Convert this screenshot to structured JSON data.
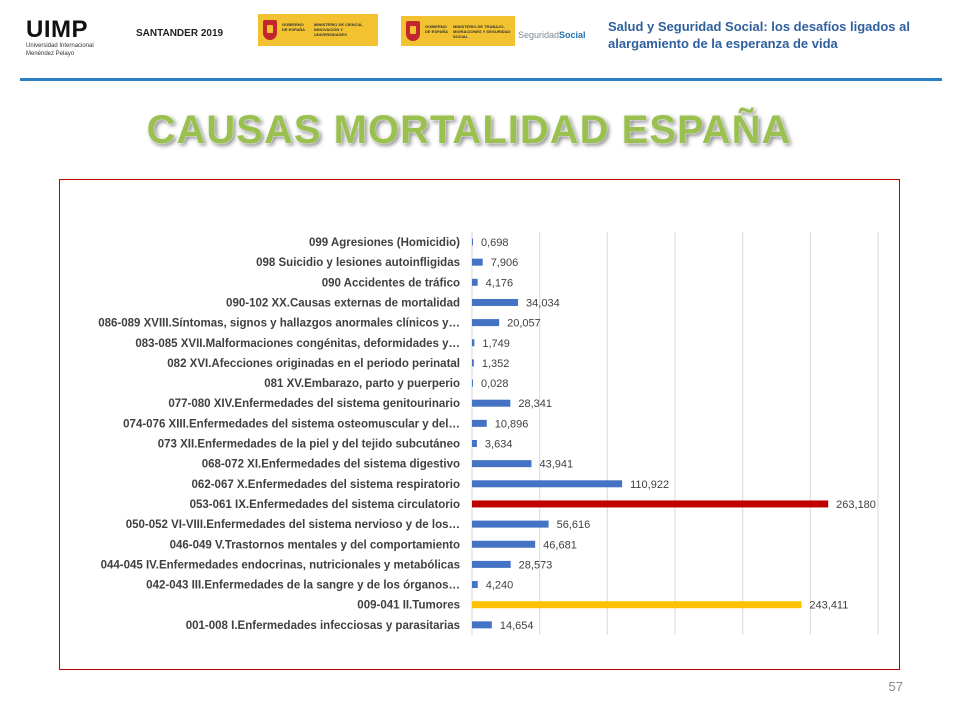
{
  "header": {
    "uimp_name": "UIMP",
    "uimp_subtitle_1": "Universidad Internacional",
    "uimp_subtitle_2": "Menéndez Pelayo",
    "event": "SANTANDER 2019",
    "gov1_text_1": "GOBIERNO DE ESPAÑA",
    "gov1_text_2": "MINISTERIO DE CIENCIA, INNOVACIÓN Y UNIVERSIDADES",
    "gov2_text_1": "GOBIERNO DE ESPAÑA",
    "gov2_text_2": "MINISTERIO DE TRABAJO, MIGRACIONES Y SEGURIDAD SOCIAL",
    "ss_prefix": "Seguridad",
    "ss_suffix": "Social",
    "conference_title_1": "Salud y Seguridad Social: los desafíos ligados al",
    "conference_title_2": "alargamiento de la esperanza de vida"
  },
  "title": "CAUSAS MORTALIDAD ESPAÑA",
  "page_number": "57",
  "chart_data": {
    "type": "bar",
    "orientation": "horizontal",
    "xlim": [
      0,
      300000
    ],
    "grid": true,
    "colors": {
      "default": "#4472c4",
      "highlight_red": "#c00000",
      "highlight_yellow": "#ffc000"
    },
    "categories": [
      "099  Agresiones (Homicidio)",
      "098 Suicidio y lesiones autoinfligidas",
      "090 Accidentes de tráfico",
      "090-102 XX.Causas externas de mortalidad",
      "086-089 XVIII.Síntomas, signos y hallazgos anormales clínicos y…",
      "083-085 XVII.Malformaciones congénitas, deformidades y…",
      "082 XVI.Afecciones originadas en el periodo perinatal",
      "081 XV.Embarazo, parto y puerperio",
      "077-080 XIV.Enfermedades del sistema genitourinario",
      "074-076 XIII.Enfermedades del sistema osteomuscular y del…",
      "073 XII.Enfermedades de la piel y del tejido subcutáneo",
      "068-072 XI.Enfermedades del sistema digestivo",
      "062-067 X.Enfermedades del sistema respiratorio",
      "053-061 IX.Enfermedades del sistema circulatorio",
      "050-052 VI-VIII.Enfermedades del sistema nervioso y de los…",
      "046-049 V.Trastornos mentales y del comportamiento",
      "044-045 IV.Enfermedades endocrinas, nutricionales y metabólicas",
      "042-043 III.Enfermedades de la sangre y de los órganos…",
      "009-041 II.Tumores",
      "001-008 I.Enfermedades infecciosas y parasitarias"
    ],
    "values": [
      698,
      7906,
      4176,
      34034,
      20057,
      1749,
      1352,
      28,
      28341,
      10896,
      3634,
      43941,
      110922,
      263180,
      56616,
      46681,
      28573,
      4240,
      243411,
      14654
    ],
    "data_labels": [
      "0,698",
      "7,906",
      "4,176",
      "34,034",
      "20,057",
      "1,749",
      "1,352",
      "0,028",
      "28,341",
      "10,896",
      "3,634",
      "43,941",
      "110,922",
      "263,180",
      "56,616",
      "46,681",
      "28,573",
      "4,240",
      "243,411",
      "14,654"
    ],
    "bar_color_keys": [
      "default",
      "default",
      "default",
      "default",
      "default",
      "default",
      "default",
      "default",
      "default",
      "default",
      "default",
      "default",
      "default",
      "highlight_red",
      "default",
      "default",
      "default",
      "default",
      "highlight_yellow",
      "default"
    ]
  }
}
